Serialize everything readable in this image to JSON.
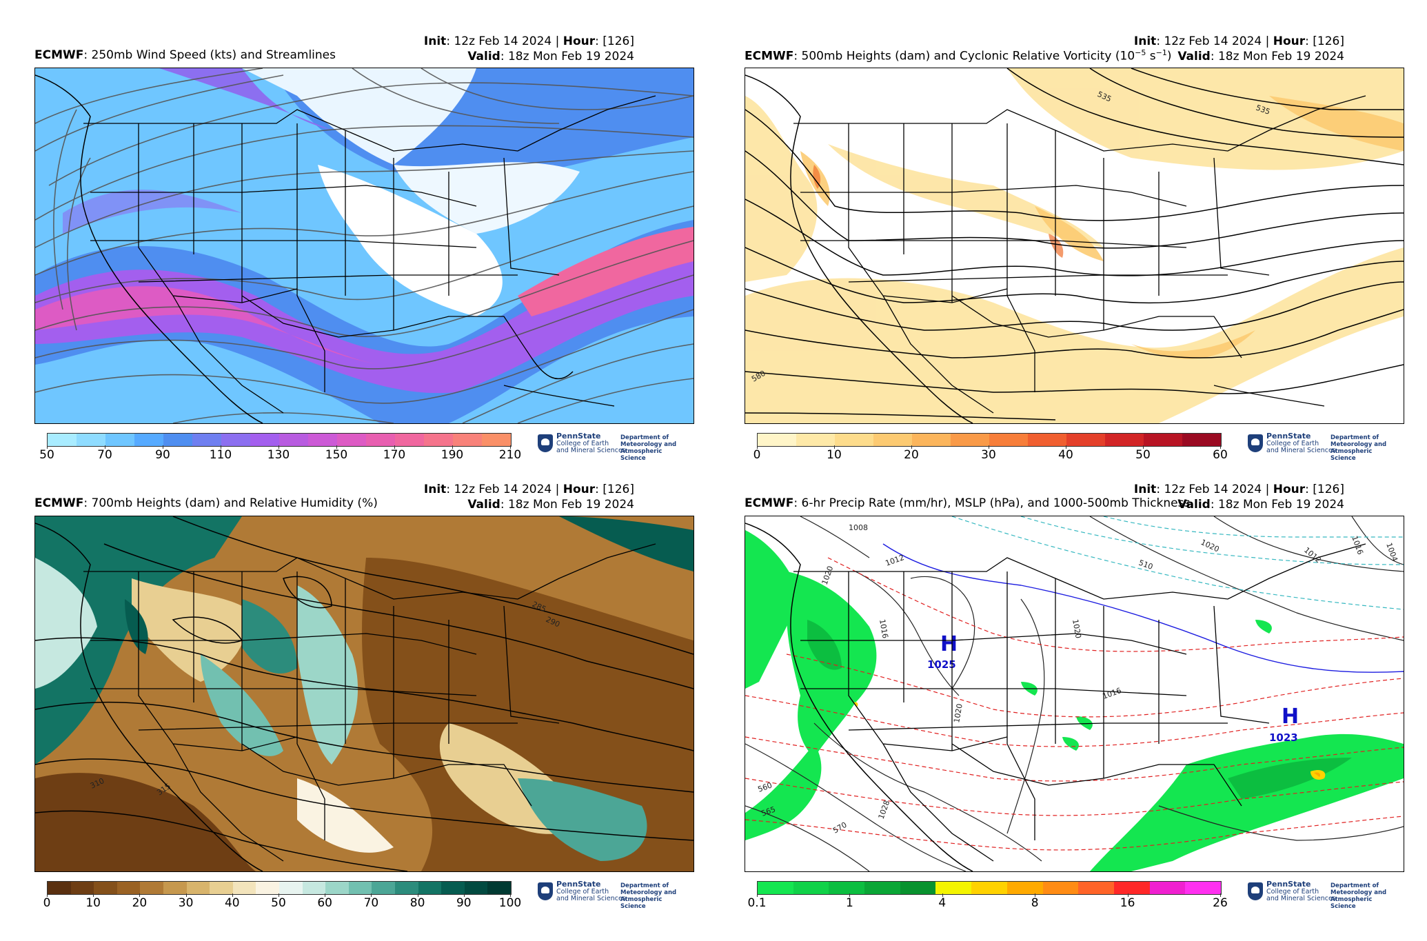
{
  "panels": [
    {
      "model": "ECMWF",
      "title": ": 250mb Wind Speed (kts) and Streamlines",
      "init_label": "Init",
      "init_value": ": 12z Feb 14 2024 | ",
      "hour_label": "Hour",
      "hour_value": ": [126]",
      "valid_label": "Valid",
      "valid_value": ": 18z Mon Feb 19 2024",
      "colorbar_ticks": [
        "50",
        "70",
        "90",
        "110",
        "130",
        "150",
        "170",
        "190",
        "210"
      ],
      "colorbar_colors": [
        "#a9ecff",
        "#8fdcff",
        "#6fc6ff",
        "#56aaff",
        "#4f8ef0",
        "#6f7ff0",
        "#8c6ff0",
        "#a35fee",
        "#b85ce0",
        "#cc5ad6",
        "#dd5bc4",
        "#e85fb0",
        "#f0679f",
        "#f5748c",
        "#f8827a",
        "#fa9068"
      ]
    },
    {
      "model": "ECMWF",
      "title": ": 500mb Heights (dam) and Cyclonic Relative Vorticity (10",
      "title_sup": "−5",
      "title_tail": " s",
      "title_sup2": "−1",
      "title_end": ")",
      "init_label": "Init",
      "init_value": ": 12z Feb 14 2024 | ",
      "hour_label": "Hour",
      "hour_value": ": [126]",
      "valid_label": "Valid",
      "valid_value": ": 18z Mon Feb 19 2024",
      "colorbar_ticks": [
        "0",
        "10",
        "20",
        "30",
        "40",
        "50",
        "60"
      ],
      "colorbar_colors": [
        "#fff5c8",
        "#fee9a8",
        "#fddc8c",
        "#fcca72",
        "#fbb55c",
        "#f99a48",
        "#f77e3a",
        "#f05f30",
        "#e4402a",
        "#d22526",
        "#b81424",
        "#9a0a22"
      ],
      "contour_labels": [
        "535",
        "535",
        "580"
      ]
    },
    {
      "model": "ECMWF",
      "title": ": 700mb Heights (dam) and Relative Humidity (%)",
      "init_label": "Init",
      "init_value": ": 12z Feb 14 2024 | ",
      "hour_label": "Hour",
      "hour_value": ": [126]",
      "valid_label": "Valid",
      "valid_value": ": 18z Mon Feb 19 2024",
      "colorbar_ticks": [
        "0",
        "10",
        "20",
        "30",
        "40",
        "50",
        "60",
        "70",
        "80",
        "90",
        "100"
      ],
      "colorbar_colors": [
        "#5a3010",
        "#6e3e14",
        "#84501a",
        "#9a6224",
        "#b07a36",
        "#c6984e",
        "#d8b46c",
        "#e8cf92",
        "#f3e4bc",
        "#faf3e2",
        "#e8f4f0",
        "#c6e8e0",
        "#9cd6c8",
        "#72c0b0",
        "#4ca696",
        "#2c8c7c",
        "#137464",
        "#065c50",
        "#024a40",
        "#013a32"
      ],
      "contour_labels": [
        "285",
        "290",
        "310",
        "315"
      ]
    },
    {
      "model": "ECMWF",
      "title": ": 6-hr Precip Rate (mm/hr), MSLP (hPa), and 1000-500mb Thickness",
      "init_label": "Init",
      "init_value": ": 12z Feb 14 2024 | ",
      "hour_label": "Hour",
      "hour_value": ": [126]",
      "valid_label": "Valid",
      "valid_value": ": 18z Mon Feb 19 2024",
      "colorbar_ticks": [
        "0.1",
        "1",
        "4",
        "8",
        "16",
        "26"
      ],
      "colorbar_colors": [
        "#14e650",
        "#10d248",
        "#0cbe40",
        "#0aa636",
        "#08922e",
        "#f4f400",
        "#ffd200",
        "#ffaa00",
        "#ff8c14",
        "#ff6428",
        "#ff2828",
        "#f020d0",
        "#ff30f0"
      ],
      "highs": [
        {
          "label": "H",
          "value": "1025"
        },
        {
          "label": "H",
          "value": "1023"
        }
      ],
      "contour_labels": [
        "1008",
        "1012",
        "1020",
        "1016",
        "1016",
        "1004",
        "1012",
        "1020",
        "1016",
        "1020",
        "1020",
        "1028",
        "510",
        "560",
        "565",
        "570"
      ]
    }
  ],
  "logo": {
    "university": "PennState",
    "college_line1": "College of Earth",
    "college_line2": "and Mineral Sciences",
    "dept_line1": "Department of",
    "dept_line2": "Meteorology and",
    "dept_line3": "Atmospheric Science"
  }
}
